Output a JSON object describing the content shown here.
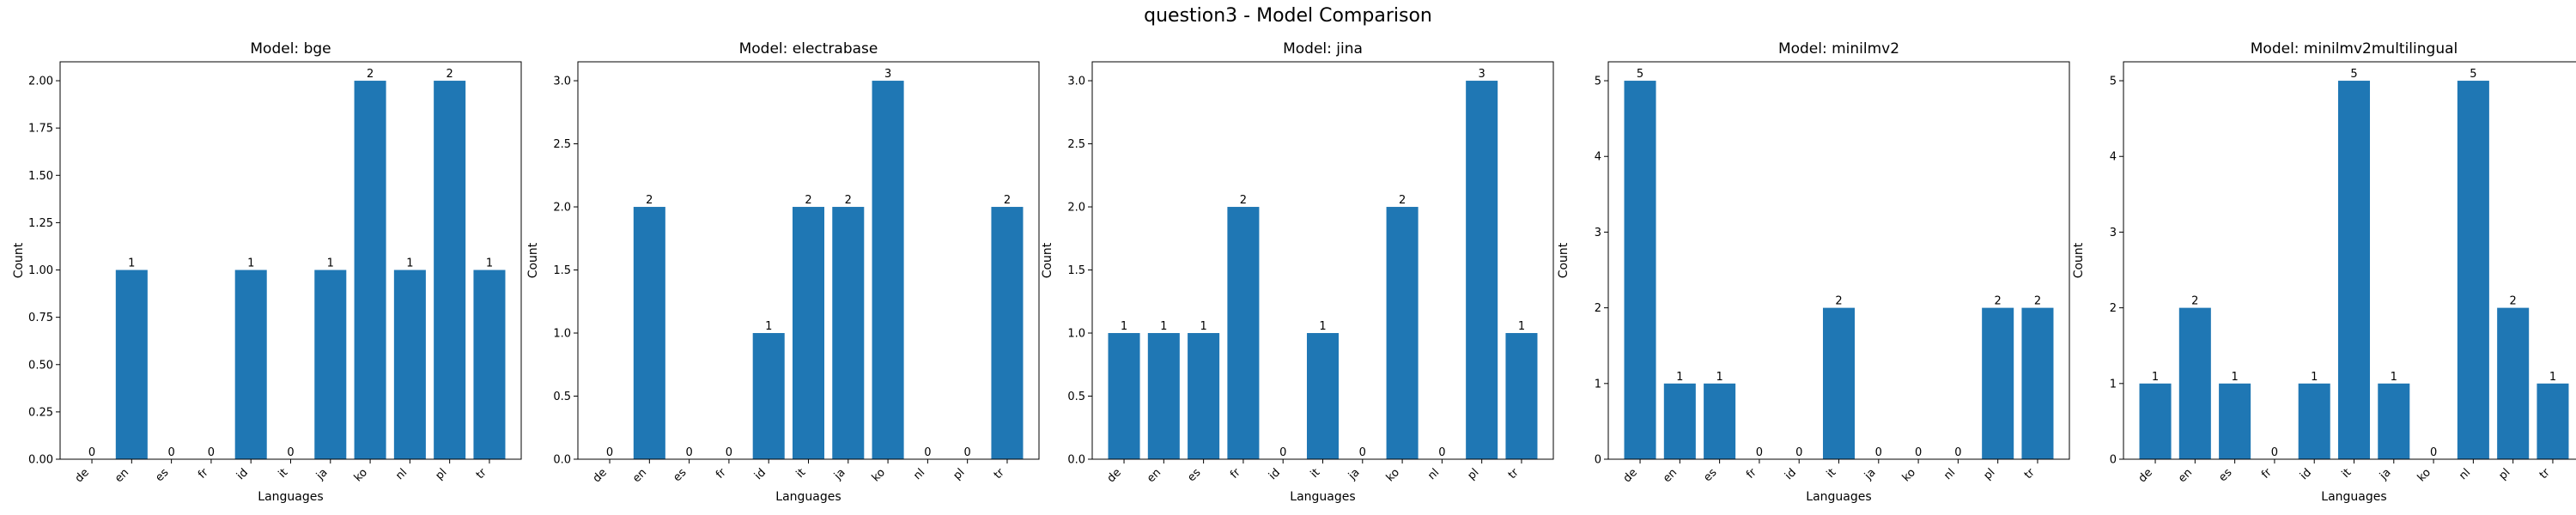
{
  "figure_title": "question3 - Model Comparison",
  "colors": {
    "bar": "#1f77b4",
    "axis": "#000000",
    "text": "#000000"
  },
  "chart_data": [
    {
      "type": "bar",
      "title": "Model: bge",
      "xlabel": "Languages",
      "ylabel": "Count",
      "categories": [
        "de",
        "en",
        "es",
        "fr",
        "id",
        "it",
        "ja",
        "ko",
        "nl",
        "pl",
        "tr"
      ],
      "values": [
        0,
        1,
        0,
        0,
        1,
        0,
        1,
        2,
        1,
        2,
        1
      ],
      "data_labels": [
        "0",
        "1",
        "0",
        "0",
        "1",
        "0",
        "1",
        "2",
        "1",
        "2",
        "1"
      ],
      "ylim": [
        0,
        2.1
      ],
      "yticks": [
        0,
        0.25,
        0.5,
        0.75,
        1.0,
        1.25,
        1.5,
        1.75,
        2.0
      ],
      "ytick_labels": [
        "0.00",
        "0.25",
        "0.50",
        "0.75",
        "1.00",
        "1.25",
        "1.50",
        "1.75",
        "2.00"
      ],
      "grid": false
    },
    {
      "type": "bar",
      "title": "Model: electrabase",
      "xlabel": "Languages",
      "ylabel": "Count",
      "categories": [
        "de",
        "en",
        "es",
        "fr",
        "id",
        "it",
        "ja",
        "ko",
        "nl",
        "pl",
        "tr"
      ],
      "values": [
        0,
        2,
        0,
        0,
        1,
        2,
        2,
        3,
        0,
        0,
        2
      ],
      "data_labels": [
        "0",
        "2",
        "0",
        "0",
        "1",
        "2",
        "2",
        "3",
        "0",
        "0",
        "2"
      ],
      "ylim": [
        0,
        3.15
      ],
      "yticks": [
        0,
        0.5,
        1.0,
        1.5,
        2.0,
        2.5,
        3.0
      ],
      "ytick_labels": [
        "0.0",
        "0.5",
        "1.0",
        "1.5",
        "2.0",
        "2.5",
        "3.0"
      ],
      "grid": false
    },
    {
      "type": "bar",
      "title": "Model: jina",
      "xlabel": "Languages",
      "ylabel": "Count",
      "categories": [
        "de",
        "en",
        "es",
        "fr",
        "id",
        "it",
        "ja",
        "ko",
        "nl",
        "pl",
        "tr"
      ],
      "values": [
        1,
        1,
        1,
        2,
        0,
        1,
        0,
        2,
        0,
        3,
        1
      ],
      "data_labels": [
        "1",
        "1",
        "1",
        "2",
        "0",
        "1",
        "0",
        "2",
        "0",
        "3",
        "1"
      ],
      "ylim": [
        0,
        3.15
      ],
      "yticks": [
        0,
        0.5,
        1.0,
        1.5,
        2.0,
        2.5,
        3.0
      ],
      "ytick_labels": [
        "0.0",
        "0.5",
        "1.0",
        "1.5",
        "2.0",
        "2.5",
        "3.0"
      ],
      "grid": false
    },
    {
      "type": "bar",
      "title": "Model: minilmv2",
      "xlabel": "Languages",
      "ylabel": "Count",
      "categories": [
        "de",
        "en",
        "es",
        "fr",
        "id",
        "it",
        "ja",
        "ko",
        "nl",
        "pl",
        "tr"
      ],
      "values": [
        5,
        1,
        1,
        0,
        0,
        2,
        0,
        0,
        0,
        2,
        2
      ],
      "data_labels": [
        "5",
        "1",
        "1",
        "0",
        "0",
        "2",
        "0",
        "0",
        "0",
        "2",
        "2"
      ],
      "ylim": [
        0,
        5.25
      ],
      "yticks": [
        0,
        1,
        2,
        3,
        4,
        5
      ],
      "ytick_labels": [
        "0",
        "1",
        "2",
        "3",
        "4",
        "5"
      ],
      "grid": false
    },
    {
      "type": "bar",
      "title": "Model: minilmv2multilingual",
      "xlabel": "Languages",
      "ylabel": "Count",
      "categories": [
        "de",
        "en",
        "es",
        "fr",
        "id",
        "it",
        "ja",
        "ko",
        "nl",
        "pl",
        "tr"
      ],
      "values": [
        1,
        2,
        1,
        0,
        1,
        5,
        1,
        0,
        5,
        2,
        1
      ],
      "data_labels": [
        "1",
        "2",
        "1",
        "0",
        "1",
        "5",
        "1",
        "0",
        "5",
        "2",
        "1"
      ],
      "ylim": [
        0,
        5.25
      ],
      "yticks": [
        0,
        1,
        2,
        3,
        4,
        5
      ],
      "ytick_labels": [
        "0",
        "1",
        "2",
        "3",
        "4",
        "5"
      ],
      "grid": false
    }
  ]
}
